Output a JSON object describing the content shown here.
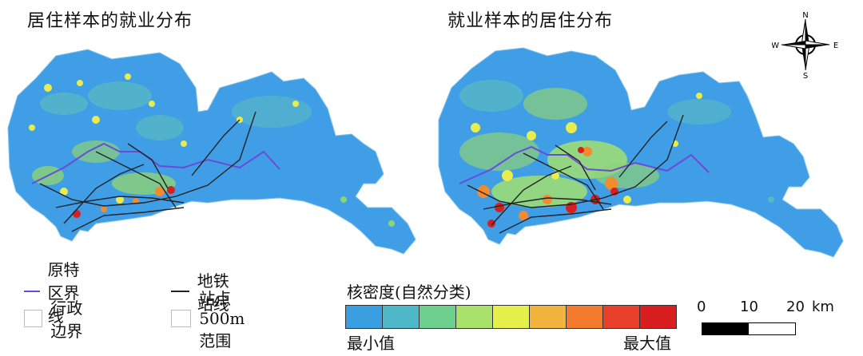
{
  "titles": {
    "left": "居住样本的就业分布",
    "right": "就业样本的居住分布"
  },
  "compass": {
    "n": "N",
    "s": "S",
    "e": "E",
    "w": "W"
  },
  "legend": {
    "sez_boundary": {
      "label": "原特区界线",
      "color": "#6a4bd8"
    },
    "metro_line": {
      "label": "地铁站线",
      "color": "#222222"
    },
    "admin_boundary": {
      "label": "行政边界"
    },
    "station_buffer": {
      "label": "站点500m范围"
    }
  },
  "density": {
    "title": "核密度(自然分类)",
    "min_label": "最小值",
    "max_label": "最大值",
    "colors": [
      "#3a9fe0",
      "#4fb8c8",
      "#6ccf8c",
      "#a8e26a",
      "#e6f04a",
      "#f2b43c",
      "#f47a2e",
      "#e8402a",
      "#d81e1e"
    ]
  },
  "scale_bar": {
    "ticks": [
      "0",
      "10",
      "20"
    ],
    "unit": "km"
  },
  "map_colors": {
    "base": "#3f9ee6",
    "low": "#58b7c6",
    "mid": "#8fd276",
    "high": "#e8ec4c",
    "hot": "#f28a2e",
    "peak": "#d6201e"
  }
}
